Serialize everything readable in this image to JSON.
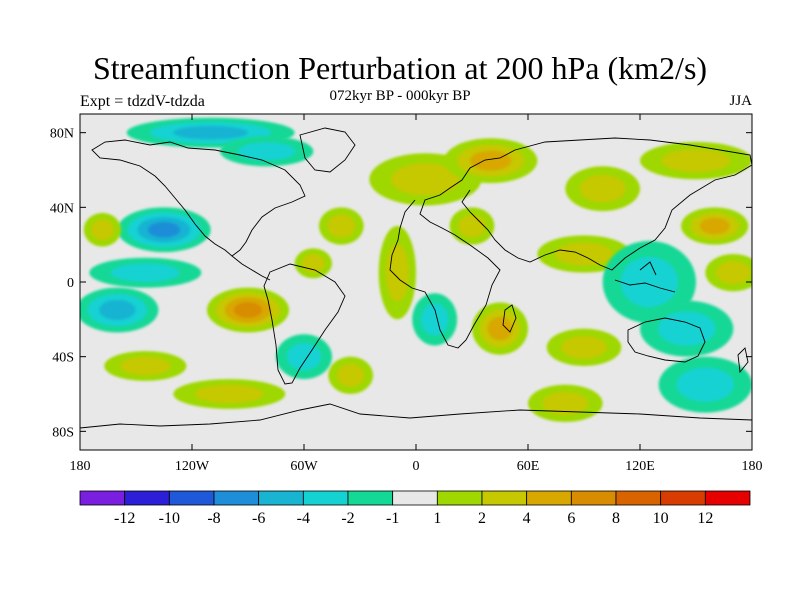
{
  "header": {
    "title": "Streamfunction Perturbation at 200 hPa (km2/s)",
    "subtitle": "072kyr BP - 000kyr BP",
    "left_label": "Expt = tdzdV-tdzda",
    "right_label": "JJA"
  },
  "map": {
    "projection": "cylindrical-equidistant",
    "lat_ticks": [
      "80N",
      "40N",
      "0",
      "40S",
      "80S"
    ],
    "lon_ticks": [
      "180",
      "120W",
      "60W",
      "0",
      "60E",
      "120E",
      "180"
    ],
    "land_outline_color": "#000000",
    "neutral_color": "#e8e8e8"
  },
  "colorbar": {
    "colors": [
      "#7a1fe0",
      "#2d1fd8",
      "#1f58d8",
      "#1f8ed8",
      "#19b4d2",
      "#14d2d2",
      "#14d896",
      "#e8e8e8",
      "#9ed800",
      "#c6c800",
      "#d8a800",
      "#d88c00",
      "#d86400",
      "#d83c00",
      "#e60000"
    ],
    "labels": [
      "-12",
      "-10",
      "-8",
      "-6",
      "-4",
      "-2",
      "-1",
      "1",
      "2",
      "4",
      "6",
      "8",
      "10",
      "12"
    ]
  },
  "chart_data": {
    "type": "heatmap",
    "title": "Streamfunction Perturbation at 200 hPa (km2/s)",
    "subtitle": "072kyr BP - 000kyr BP",
    "levels": [
      -12,
      -10,
      -8,
      -6,
      -4,
      -2,
      -1,
      1,
      2,
      4,
      6,
      8,
      10,
      12
    ],
    "lon_range": [
      -180,
      180
    ],
    "lat_range": [
      -90,
      90
    ],
    "features": [
      {
        "lon": -135,
        "lat": 28,
        "value": -6,
        "rx": 25,
        "ry": 12
      },
      {
        "lon": -110,
        "lat": 80,
        "value": -4,
        "rx": 45,
        "ry": 8
      },
      {
        "lon": -80,
        "lat": 70,
        "value": -3,
        "rx": 25,
        "ry": 8
      },
      {
        "lon": -160,
        "lat": -15,
        "value": -5,
        "rx": 22,
        "ry": 12
      },
      {
        "lon": -145,
        "lat": 5,
        "value": -2,
        "rx": 30,
        "ry": 8
      },
      {
        "lon": -168,
        "lat": 28,
        "value": 2,
        "rx": 10,
        "ry": 9
      },
      {
        "lon": -145,
        "lat": -45,
        "value": 2,
        "rx": 22,
        "ry": 8
      },
      {
        "lon": -90,
        "lat": -15,
        "value": 7,
        "rx": 22,
        "ry": 12
      },
      {
        "lon": -100,
        "lat": -60,
        "value": 2,
        "rx": 30,
        "ry": 8
      },
      {
        "lon": -60,
        "lat": -40,
        "value": -2,
        "rx": 15,
        "ry": 12
      },
      {
        "lon": -35,
        "lat": -50,
        "value": 3,
        "rx": 12,
        "ry": 10
      },
      {
        "lon": -40,
        "lat": 30,
        "value": 2,
        "rx": 12,
        "ry": 10
      },
      {
        "lon": -55,
        "lat": 10,
        "value": 2,
        "rx": 10,
        "ry": 8
      },
      {
        "lon": -10,
        "lat": 5,
        "value": 2,
        "rx": 10,
        "ry": 25
      },
      {
        "lon": 5,
        "lat": 55,
        "value": 3,
        "rx": 30,
        "ry": 14
      },
      {
        "lon": 40,
        "lat": 65,
        "value": 5,
        "rx": 25,
        "ry": 12
      },
      {
        "lon": 30,
        "lat": 30,
        "value": 2,
        "rx": 12,
        "ry": 10
      },
      {
        "lon": 10,
        "lat": -20,
        "value": -3,
        "rx": 12,
        "ry": 14
      },
      {
        "lon": 45,
        "lat": -25,
        "value": 5,
        "rx": 15,
        "ry": 14
      },
      {
        "lon": 90,
        "lat": -35,
        "value": 2,
        "rx": 20,
        "ry": 10
      },
      {
        "lon": 90,
        "lat": 15,
        "value": 2,
        "rx": 25,
        "ry": 10
      },
      {
        "lon": 80,
        "lat": -65,
        "value": 3,
        "rx": 20,
        "ry": 10
      },
      {
        "lon": 125,
        "lat": 0,
        "value": -2,
        "rx": 25,
        "ry": 22
      },
      {
        "lon": 145,
        "lat": -25,
        "value": -2,
        "rx": 25,
        "ry": 15
      },
      {
        "lon": 160,
        "lat": 30,
        "value": 5,
        "rx": 18,
        "ry": 10
      },
      {
        "lon": 150,
        "lat": 65,
        "value": 2,
        "rx": 30,
        "ry": 10
      },
      {
        "lon": 100,
        "lat": 50,
        "value": 2,
        "rx": 20,
        "ry": 12
      },
      {
        "lon": 155,
        "lat": -55,
        "value": -2,
        "rx": 25,
        "ry": 15
      },
      {
        "lon": 170,
        "lat": 5,
        "value": 2,
        "rx": 15,
        "ry": 10
      }
    ]
  }
}
